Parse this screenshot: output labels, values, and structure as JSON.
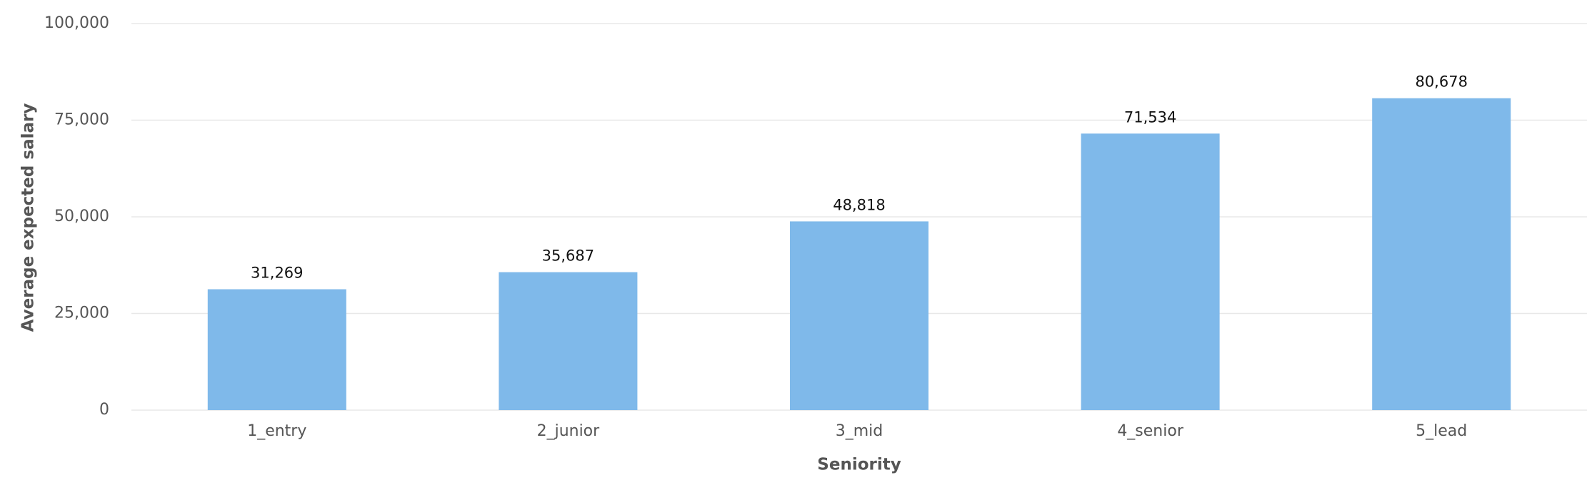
{
  "chart_data": {
    "type": "bar",
    "x_label": "Seniority",
    "y_label": "Average expected salary",
    "categories": [
      "1_entry",
      "2_junior",
      "3_mid",
      "4_senior",
      "5_lead"
    ],
    "values": [
      31269,
      35687,
      48818,
      71534,
      80678
    ],
    "value_labels": [
      "31,269",
      "35,687",
      "48,818",
      "71,534",
      "80,678"
    ],
    "color": "#7fb9ea",
    "ylim": [
      0,
      100000
    ],
    "yticks": [
      0,
      {
        "value": 25000,
        "label": "25,000"
      },
      {
        "value": 50000,
        "label": "50,000"
      },
      {
        "value": 75000,
        "label": "75,000"
      },
      {
        "value": 100000,
        "label": "100,000"
      }
    ],
    "grid": true
  }
}
